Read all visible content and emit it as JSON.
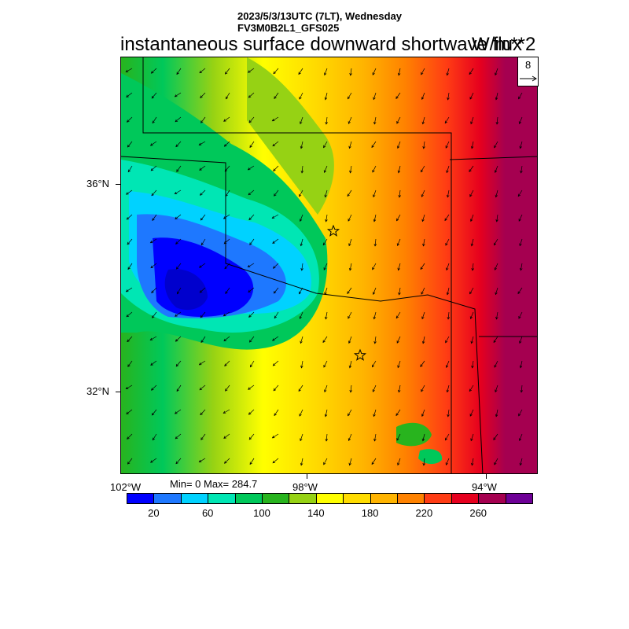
{
  "header": {
    "line1": "2023/5/3/13UTC (7LT), Wednesday",
    "line2": "FV3M0B2L1_GFS025",
    "title": "instantaneous surface downward shortwave flux",
    "units": "W/m**2"
  },
  "reference_vector": {
    "value": "8"
  },
  "stats": {
    "text": "Min= 0 Max= 284.7"
  },
  "axes": {
    "lat_labels": [
      "36°N",
      "32°N"
    ],
    "lon_labels": [
      "102°W",
      "98°W",
      "94°W"
    ]
  },
  "colorbar": {
    "colors": [
      "#0000ff",
      "#1e78ff",
      "#00d2ff",
      "#00e6b4",
      "#00c85a",
      "#28b41e",
      "#96d214",
      "#ffff00",
      "#ffdc00",
      "#ffb400",
      "#ff8200",
      "#ff3c14",
      "#e6001e",
      "#a50050",
      "#6e0096"
    ],
    "labels": [
      "20",
      "60",
      "100",
      "140",
      "180",
      "220",
      "260"
    ]
  },
  "markers": [
    "star",
    "star"
  ],
  "colors": {
    "frame": "#000000",
    "background": "#ffffff"
  }
}
